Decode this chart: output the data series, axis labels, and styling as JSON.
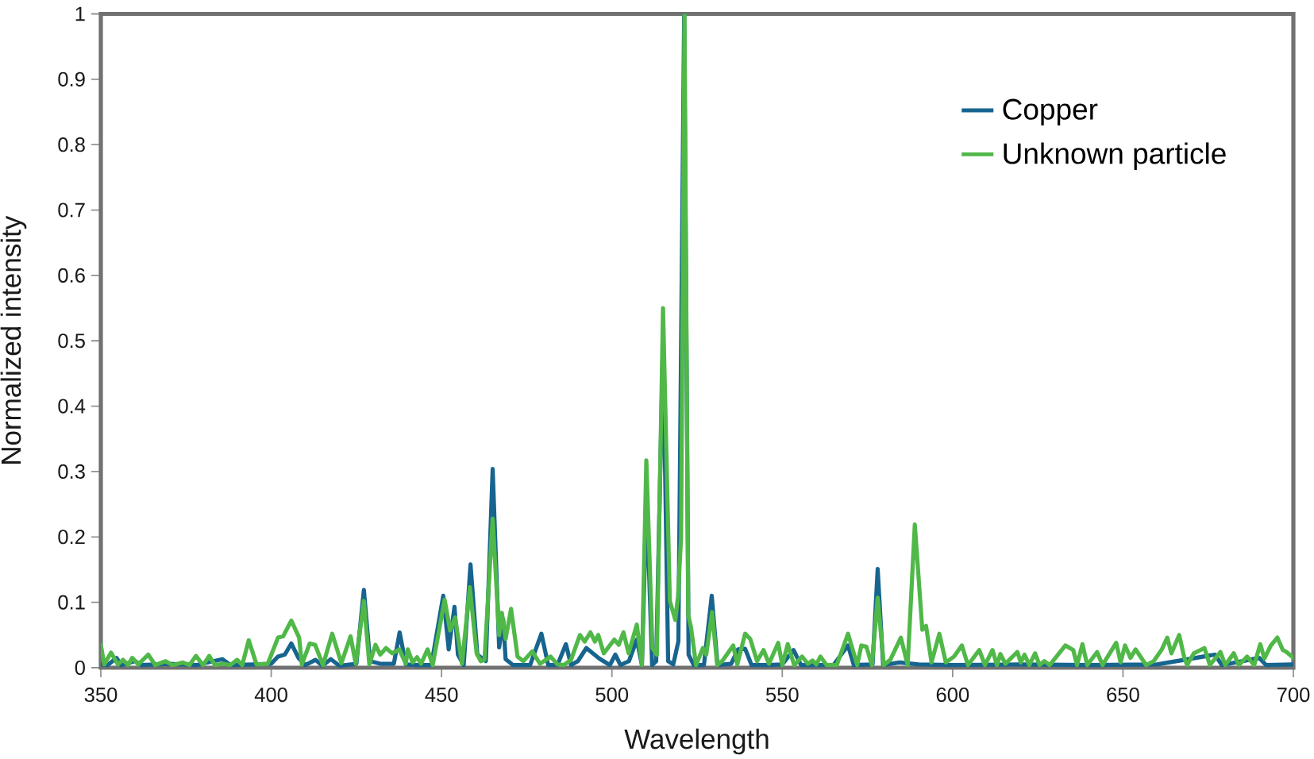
{
  "chart_data": {
    "type": "line",
    "xlabel": "Wavelength",
    "ylabel": "Normalized intensity",
    "xlim": [
      350,
      700
    ],
    "ylim": [
      0,
      1
    ],
    "xticks": [
      350,
      400,
      450,
      500,
      550,
      600,
      650,
      700
    ],
    "yticks": [
      0,
      0.1,
      0.2,
      0.3,
      0.4,
      0.5,
      0.6,
      0.7,
      0.8,
      0.9,
      1
    ],
    "legend": "top right",
    "series": [
      {
        "name": "Copper",
        "color": "#17648f",
        "x": [
          350,
          352,
          354.6,
          356,
          360,
          362,
          370,
          378,
          385.7,
          388,
          395,
          400,
          402,
          404,
          405.9,
          408,
          410,
          413,
          415,
          417.5,
          420,
          425,
          427.2,
          429,
          432,
          436,
          437.7,
          439.5,
          443,
          447,
          450.5,
          452.1,
          453.8,
          454.8,
          456.5,
          458.5,
          460.5,
          463,
          465,
          466.9,
          468.1,
          468.8,
          471,
          476,
          479.3,
          481.3,
          484,
          486.5,
          488,
          490,
          492.5,
          496.3,
          499.4,
          501,
          502.5,
          505,
          507.3,
          508.8,
          510.2,
          511.8,
          513,
          515,
          516.5,
          518,
          519.5,
          521.2,
          522.5,
          524,
          527,
          529.3,
          531,
          535,
          537,
          539.1,
          541,
          546,
          550,
          553.3,
          555.5,
          565,
          569.3,
          571,
          576.5,
          578,
          579.6,
          584.4,
          590,
          600,
          620,
          640,
          660,
          677,
          679,
          690,
          692,
          700
        ],
        "values": [
          0.005,
          0.004,
          0.015,
          0.004,
          0.01,
          0.004,
          0.006,
          0.004,
          0.013,
          0.004,
          0.005,
          0.006,
          0.017,
          0.02,
          0.037,
          0.015,
          0.004,
          0.012,
          0.003,
          0.013,
          0.003,
          0.006,
          0.119,
          0.01,
          0.006,
          0.006,
          0.054,
          0.005,
          0.004,
          0.004,
          0.11,
          0.028,
          0.093,
          0.02,
          0.004,
          0.158,
          0.02,
          0.01,
          0.304,
          0.031,
          0.074,
          0.013,
          0.004,
          0.004,
          0.052,
          0.004,
          0.004,
          0.036,
          0.004,
          0.01,
          0.03,
          0.014,
          0.004,
          0.02,
          0.004,
          0.01,
          0.043,
          0.004,
          0.26,
          0.004,
          0.01,
          0.5,
          0.01,
          0.005,
          0.04,
          1.0,
          0.02,
          0.004,
          0.004,
          0.11,
          0.004,
          0.006,
          0.028,
          0.029,
          0.004,
          0.004,
          0.005,
          0.027,
          0.004,
          0.004,
          0.034,
          0.004,
          0.005,
          0.151,
          0.004,
          0.008,
          0.005,
          0.004,
          0.005,
          0.004,
          0.005,
          0.02,
          0.004,
          0.015,
          0.004,
          0.005
        ]
      },
      {
        "name": "Unknown particle",
        "color": "#50b848",
        "x": [
          350,
          351,
          353,
          355,
          356.5,
          358,
          359.2,
          361,
          363.9,
          366,
          369,
          371,
          374,
          376,
          377.9,
          380,
          381.8,
          383.5,
          386,
          388,
          390,
          391.5,
          393.4,
          395.7,
          399,
          402,
          403.5,
          405.9,
          408.2,
          409,
          411.3,
          412.9,
          415.2,
          417.9,
          420.6,
          423.3,
          424.8,
          427.2,
          428.8,
          430.6,
          432,
          433.7,
          435.5,
          437.6,
          439.5,
          440.1,
          441.5,
          442.8,
          444,
          445.9,
          447.4,
          450.9,
          452.5,
          454,
          456,
          458.3,
          460.3,
          461.5,
          462.6,
          465,
          466.9,
          467.7,
          468.8,
          470.4,
          472.3,
          474,
          476.6,
          478.9,
          482,
          484,
          485.9,
          488,
          490.6,
          492,
          493.7,
          495,
          496,
          497.6,
          500.7,
          502,
          503.4,
          504.9,
          507.3,
          508.8,
          510.1,
          511.9,
          513.2,
          515,
          517,
          518.6,
          519.4,
          520.3,
          521.3,
          522.4,
          523.2,
          524.7,
          526.7,
          527.7,
          529.4,
          530.9,
          532.5,
          535.6,
          536.8,
          539.1,
          540.6,
          542.6,
          544.5,
          546.1,
          548.8,
          550,
          551.6,
          553.5,
          555.8,
          557.5,
          558.9,
          560,
          561.2,
          563,
          566,
          569.3,
          572,
          573.2,
          574.7,
          576.3,
          578,
          579.8,
          581.7,
          584.8,
          586.8,
          588.9,
          591.1,
          592.2,
          593.8,
          596.1,
          598,
          600.4,
          602.7,
          604.5,
          607.8,
          609.5,
          611.7,
          613,
          614,
          615.5,
          619,
          620,
          621.1,
          622.5,
          624.2,
          625.5,
          626.9,
          628.5,
          633.1,
          635.4,
          636.5,
          638.1,
          639.5,
          642.4,
          644,
          648,
          649.3,
          650.6,
          652.2,
          653.7,
          656.8,
          659,
          661.4,
          663,
          664.2,
          666.5,
          668,
          668.8,
          670.8,
          673.9,
          675.5,
          678.6,
          680,
          682.5,
          684,
          686.4,
          688.5,
          690.3,
          691.5,
          693.4,
          695.3,
          696.9,
          698,
          700
        ],
        "values": [
          0.035,
          0.005,
          0.023,
          0.005,
          0.012,
          0.004,
          0.015,
          0.005,
          0.02,
          0.004,
          0.01,
          0.004,
          0.008,
          0.004,
          0.018,
          0.004,
          0.018,
          0.004,
          0.006,
          0.004,
          0.012,
          0.004,
          0.042,
          0.005,
          0.006,
          0.046,
          0.048,
          0.072,
          0.046,
          0.005,
          0.037,
          0.035,
          0.004,
          0.052,
          0.007,
          0.048,
          0.006,
          0.102,
          0.005,
          0.035,
          0.02,
          0.03,
          0.022,
          0.028,
          0.006,
          0.028,
          0.008,
          0.016,
          0.006,
          0.028,
          0.004,
          0.104,
          0.057,
          0.077,
          0.006,
          0.123,
          0.022,
          0.01,
          0.012,
          0.228,
          0.05,
          0.084,
          0.044,
          0.09,
          0.017,
          0.01,
          0.025,
          0.006,
          0.017,
          0.005,
          0.004,
          0.012,
          0.05,
          0.04,
          0.054,
          0.04,
          0.05,
          0.022,
          0.043,
          0.035,
          0.054,
          0.022,
          0.066,
          0.004,
          0.317,
          0.03,
          0.02,
          0.55,
          0.102,
          0.073,
          0.109,
          0.2,
          1.0,
          0.08,
          0.062,
          0.004,
          0.03,
          0.02,
          0.085,
          0.004,
          0.011,
          0.034,
          0.005,
          0.052,
          0.044,
          0.01,
          0.027,
          0.006,
          0.038,
          0.004,
          0.036,
          0.004,
          0.017,
          0.006,
          0.011,
          0.005,
          0.017,
          0.004,
          0.004,
          0.052,
          0.004,
          0.034,
          0.032,
          0.004,
          0.107,
          0.004,
          0.012,
          0.046,
          0.004,
          0.219,
          0.058,
          0.064,
          0.008,
          0.052,
          0.008,
          0.017,
          0.034,
          0.004,
          0.027,
          0.004,
          0.027,
          0.004,
          0.021,
          0.006,
          0.024,
          0.008,
          0.02,
          0.004,
          0.022,
          0.004,
          0.01,
          0.004,
          0.034,
          0.027,
          0.004,
          0.036,
          0.004,
          0.024,
          0.004,
          0.038,
          0.008,
          0.034,
          0.015,
          0.028,
          0.004,
          0.01,
          0.028,
          0.046,
          0.022,
          0.05,
          0.015,
          0.004,
          0.022,
          0.03,
          0.004,
          0.024,
          0.004,
          0.022,
          0.004,
          0.017,
          0.004,
          0.036,
          0.014,
          0.034,
          0.046,
          0.027,
          0.024,
          0.015
        ]
      }
    ]
  }
}
